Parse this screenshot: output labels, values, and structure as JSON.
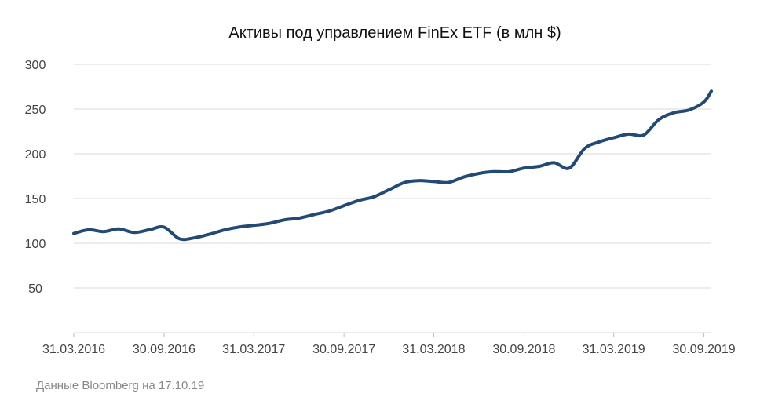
{
  "chart_data": {
    "type": "line",
    "title": "Активы под управлением FinEx ETF (в млн $)",
    "source_note": "Данные Bloomberg на 17.10.19",
    "line_color": "#234a73",
    "grid_color": "#d9d9d9",
    "ylim": [
      0,
      300
    ],
    "yticks": [
      "50",
      "100",
      "150",
      "200",
      "250",
      "300"
    ],
    "ytick_values": [
      50,
      100,
      150,
      200,
      250,
      300
    ],
    "xticks": [
      "31.03.2016",
      "30.09.2016",
      "31.03.2017",
      "30.09.2017",
      "31.03.2018",
      "30.09.2018",
      "31.03.2019",
      "30.09.2019"
    ],
    "xlim": [
      "31.03.2016",
      "15.10.2019"
    ],
    "series": [
      {
        "x": [
          "31.03.2016",
          "30.04.2016",
          "31.05.2016",
          "30.06.2016",
          "31.07.2016",
          "31.08.2016",
          "30.09.2016",
          "31.10.2016",
          "30.11.2016",
          "31.12.2016",
          "31.01.2017",
          "28.02.2017",
          "31.03.2017",
          "30.04.2017",
          "31.05.2017",
          "30.06.2017",
          "31.07.2017",
          "31.08.2017",
          "30.09.2017",
          "31.10.2017",
          "30.11.2017",
          "31.12.2017",
          "31.01.2018",
          "28.02.2018",
          "31.03.2018",
          "30.04.2018",
          "31.05.2018",
          "30.06.2018",
          "31.07.2018",
          "31.08.2018",
          "30.09.2018",
          "31.10.2018",
          "30.11.2018",
          "31.12.2018",
          "31.01.2019",
          "28.02.2019",
          "31.03.2019",
          "30.04.2019",
          "31.05.2019",
          "30.06.2019",
          "31.07.2019",
          "31.08.2019",
          "30.09.2019",
          "15.10.2019"
        ],
        "values": [
          111,
          115,
          113,
          116,
          112,
          115,
          118,
          105,
          106,
          110,
          115,
          118,
          120,
          122,
          126,
          128,
          132,
          136,
          142,
          148,
          152,
          160,
          168,
          170,
          169,
          168,
          174,
          178,
          180,
          180,
          184,
          186,
          190,
          184,
          206,
          213,
          218,
          222,
          221,
          238,
          246,
          249,
          258,
          270
        ]
      }
    ]
  }
}
